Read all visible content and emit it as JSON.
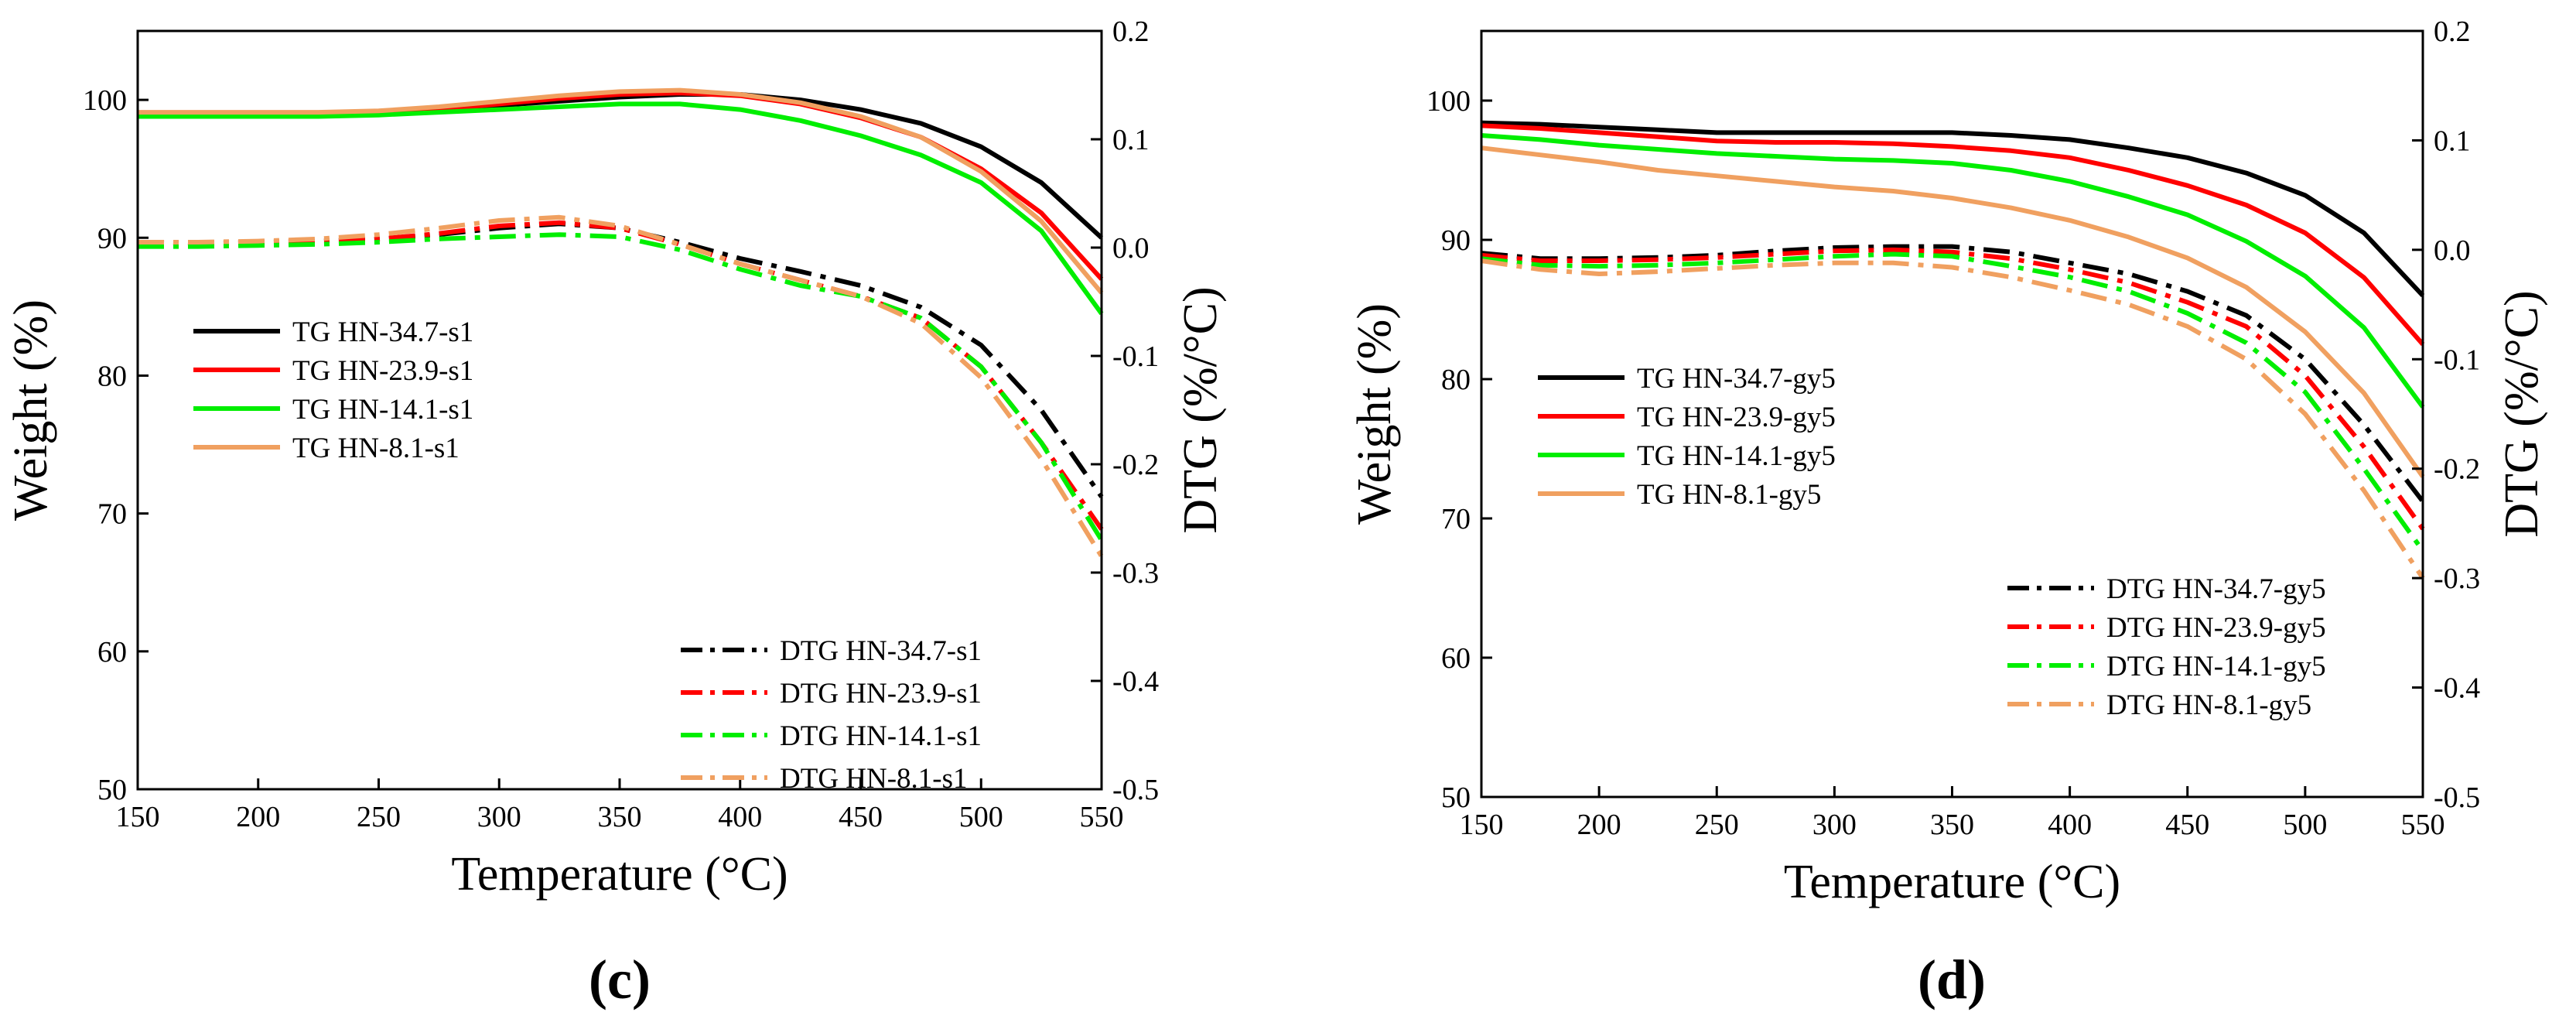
{
  "chart_data": [
    {
      "type": "line",
      "panel_label": "(c)",
      "xlabel": "Temperature (°C)",
      "ylabel": "Weight (%)",
      "y2label": "DTG (%/°C)",
      "xlim": [
        150,
        550
      ],
      "ylim": [
        50,
        105
      ],
      "y2lim": [
        -0.5,
        0.2
      ],
      "xticks": [
        "150",
        "200",
        "250",
        "300",
        "350",
        "400",
        "450",
        "500",
        "550"
      ],
      "yticks": [
        "50",
        "60",
        "70",
        "80",
        "90",
        "100"
      ],
      "y2ticks": [
        "-0.5",
        "-0.4",
        "-0.3",
        "-0.2",
        "-0.1",
        "0.0",
        "0.1",
        "0.2"
      ],
      "grid": false,
      "legend_tg_position": "middle-left",
      "legend_dtg_position": "bottom-right",
      "x": [
        150,
        175,
        200,
        225,
        250,
        275,
        300,
        325,
        350,
        375,
        400,
        425,
        450,
        475,
        500,
        525,
        550
      ],
      "series": [
        {
          "name": "TG HN-34.7-s1",
          "axis": "left",
          "style": "solid",
          "color": "#000000",
          "values": [
            99.0,
            99.0,
            99.0,
            99.0,
            99.1,
            99.3,
            99.6,
            99.9,
            100.2,
            100.4,
            100.4,
            100.0,
            99.3,
            98.3,
            96.6,
            94.0,
            90.0
          ]
        },
        {
          "name": "TG HN-23.9-s1",
          "axis": "left",
          "style": "solid",
          "color": "#ff0000",
          "values": [
            99.0,
            99.0,
            99.0,
            99.0,
            99.1,
            99.3,
            99.7,
            100.1,
            100.4,
            100.5,
            100.3,
            99.7,
            98.7,
            97.3,
            95.0,
            91.8,
            87.0
          ]
        },
        {
          "name": "TG HN-14.1-s1",
          "axis": "left",
          "style": "solid",
          "color": "#00ee00",
          "values": [
            98.8,
            98.8,
            98.8,
            98.8,
            98.9,
            99.1,
            99.3,
            99.5,
            99.7,
            99.7,
            99.3,
            98.5,
            97.4,
            96.0,
            94.0,
            90.5,
            84.5
          ]
        },
        {
          "name": "TG HN-8.1-s1",
          "axis": "left",
          "style": "solid",
          "color": "#f0a060",
          "values": [
            99.1,
            99.1,
            99.1,
            99.1,
            99.2,
            99.5,
            99.9,
            100.3,
            100.6,
            100.7,
            100.4,
            99.8,
            98.8,
            97.3,
            94.8,
            91.2,
            86.0
          ]
        },
        {
          "name": "DTG HN-34.7-s1",
          "axis": "right",
          "style": "dashdot",
          "color": "#000000",
          "values": [
            0.005,
            0.004,
            0.005,
            0.006,
            0.008,
            0.012,
            0.018,
            0.022,
            0.018,
            0.005,
            -0.01,
            -0.022,
            -0.035,
            -0.055,
            -0.09,
            -0.15,
            -0.23
          ]
        },
        {
          "name": "DTG HN-23.9-s1",
          "axis": "right",
          "style": "dashdot",
          "color": "#ff0000",
          "values": [
            0.005,
            0.004,
            0.005,
            0.006,
            0.008,
            0.013,
            0.02,
            0.023,
            0.018,
            0.003,
            -0.015,
            -0.03,
            -0.045,
            -0.065,
            -0.11,
            -0.18,
            -0.26
          ]
        },
        {
          "name": "DTG HN-14.1-s1",
          "axis": "right",
          "style": "dashdot",
          "color": "#00ee00",
          "values": [
            0.001,
            0.001,
            0.002,
            0.003,
            0.005,
            0.008,
            0.01,
            0.012,
            0.01,
            -0.002,
            -0.02,
            -0.035,
            -0.045,
            -0.065,
            -0.11,
            -0.18,
            -0.27
          ]
        },
        {
          "name": "DTG HN-8.1-s1",
          "axis": "right",
          "style": "dashdot",
          "color": "#f0a060",
          "values": [
            0.005,
            0.005,
            0.006,
            0.008,
            0.012,
            0.018,
            0.025,
            0.028,
            0.02,
            0.003,
            -0.015,
            -0.03,
            -0.045,
            -0.07,
            -0.12,
            -0.195,
            -0.285
          ]
        }
      ]
    },
    {
      "type": "line",
      "panel_label": "(d)",
      "xlabel": "Temperature (°C)",
      "ylabel": "Weight (%)",
      "y2label": "DTG (%/°C)",
      "xlim": [
        150,
        550
      ],
      "ylim": [
        50,
        105
      ],
      "y2lim": [
        -0.5,
        0.2
      ],
      "xticks": [
        "150",
        "200",
        "250",
        "300",
        "350",
        "400",
        "450",
        "500",
        "550"
      ],
      "yticks": [
        "50",
        "60",
        "70",
        "80",
        "90",
        "100"
      ],
      "y2ticks": [
        "-0.5",
        "-0.4",
        "-0.3",
        "-0.2",
        "-0.1",
        "0.0",
        "0.1",
        "0.2"
      ],
      "grid": false,
      "legend_tg_position": "middle-left",
      "legend_dtg_position": "bottom-right",
      "x": [
        150,
        175,
        200,
        225,
        250,
        275,
        300,
        325,
        350,
        375,
        400,
        425,
        450,
        475,
        500,
        525,
        550
      ],
      "series": [
        {
          "name": "TG HN-34.7-gy5",
          "axis": "left",
          "style": "solid",
          "color": "#000000",
          "values": [
            98.4,
            98.3,
            98.1,
            97.9,
            97.7,
            97.7,
            97.7,
            97.7,
            97.7,
            97.5,
            97.2,
            96.6,
            95.9,
            94.8,
            93.2,
            90.5,
            86.0
          ]
        },
        {
          "name": "TG HN-23.9-gy5",
          "axis": "left",
          "style": "solid",
          "color": "#ff0000",
          "values": [
            98.2,
            98.0,
            97.7,
            97.4,
            97.1,
            97.0,
            97.0,
            96.9,
            96.7,
            96.4,
            95.9,
            95.0,
            93.9,
            92.5,
            90.5,
            87.3,
            82.5
          ]
        },
        {
          "name": "TG HN-14.1-gy5",
          "axis": "left",
          "style": "solid",
          "color": "#00ee00",
          "values": [
            97.5,
            97.2,
            96.8,
            96.5,
            96.2,
            96.0,
            95.8,
            95.7,
            95.5,
            95.0,
            94.2,
            93.1,
            91.8,
            89.9,
            87.4,
            83.7,
            78.0
          ]
        },
        {
          "name": "TG HN-8.1-gy5",
          "axis": "left",
          "style": "solid",
          "color": "#f0a060",
          "values": [
            96.6,
            96.1,
            95.6,
            95.0,
            94.6,
            94.2,
            93.8,
            93.5,
            93.0,
            92.3,
            91.4,
            90.2,
            88.7,
            86.6,
            83.4,
            79.0,
            73.0
          ]
        },
        {
          "name": "DTG HN-34.7-gy5",
          "axis": "right",
          "style": "dashdot",
          "color": "#000000",
          "values": [
            -0.003,
            -0.008,
            -0.008,
            -0.007,
            -0.005,
            -0.001,
            0.002,
            0.003,
            0.003,
            -0.002,
            -0.012,
            -0.022,
            -0.038,
            -0.06,
            -0.1,
            -0.16,
            -0.23
          ]
        },
        {
          "name": "DTG HN-23.9-gy5",
          "axis": "right",
          "style": "dashdot",
          "color": "#ff0000",
          "values": [
            -0.005,
            -0.01,
            -0.01,
            -0.009,
            -0.007,
            -0.004,
            -0.001,
            0.0,
            -0.002,
            -0.008,
            -0.018,
            -0.03,
            -0.048,
            -0.07,
            -0.115,
            -0.18,
            -0.255
          ]
        },
        {
          "name": "DTG HN-14.1-gy5",
          "axis": "right",
          "style": "dashdot",
          "color": "#00ee00",
          "values": [
            -0.008,
            -0.014,
            -0.015,
            -0.014,
            -0.012,
            -0.009,
            -0.006,
            -0.004,
            -0.006,
            -0.015,
            -0.025,
            -0.038,
            -0.058,
            -0.085,
            -0.13,
            -0.2,
            -0.275
          ]
        },
        {
          "name": "DTG HN-8.1-gy5",
          "axis": "right",
          "style": "dashdot",
          "color": "#f0a060",
          "values": [
            -0.01,
            -0.018,
            -0.022,
            -0.02,
            -0.017,
            -0.014,
            -0.012,
            -0.012,
            -0.016,
            -0.025,
            -0.037,
            -0.05,
            -0.07,
            -0.1,
            -0.15,
            -0.22,
            -0.3
          ]
        }
      ]
    }
  ]
}
